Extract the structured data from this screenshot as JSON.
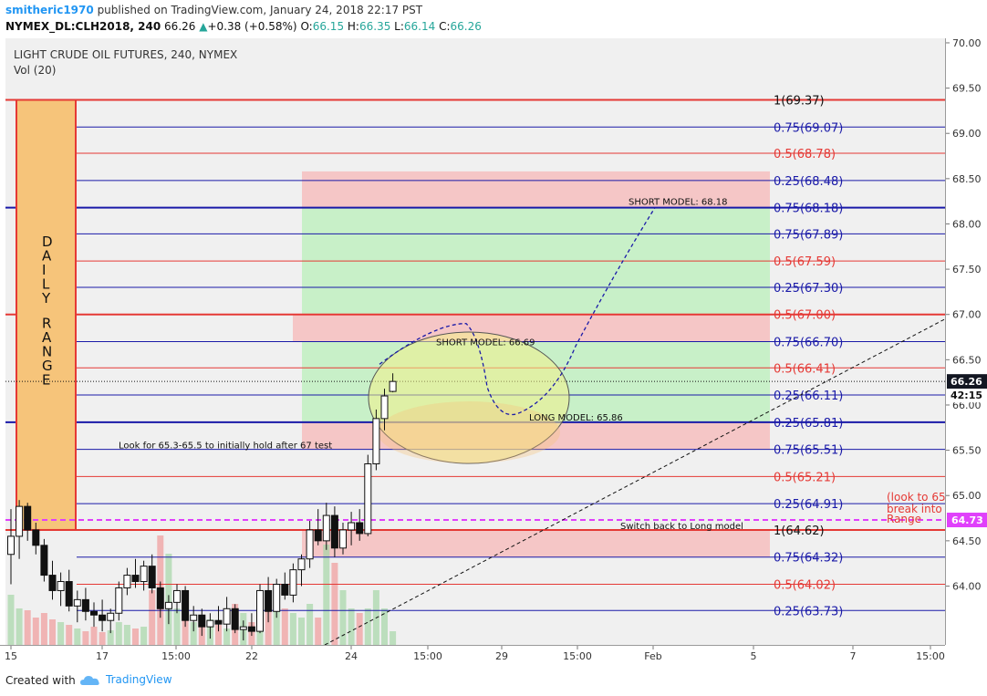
{
  "header": {
    "user": "smitheric1970",
    "published_text": "published on TradingView.com, January 24, 2018 22:17 PST",
    "symbol": "NYMEX_DL:CLH2018, 240",
    "last": "66.26",
    "change": "+0.38 (+0.58%)",
    "o_label": "O:",
    "o": "66.15",
    "h_label": "H:",
    "h": "66.35",
    "l_label": "L:",
    "l": "66.14",
    "c_label": "C:",
    "c": "66.26"
  },
  "legend": {
    "title": "LIGHT CRUDE OIL FUTURES, 240, NYMEX",
    "vol": "Vol (20)"
  },
  "footer": {
    "created_with": "Created with",
    "brand": "TradingView"
  },
  "colors": {
    "red": "#e53935",
    "blue": "#1a1aa8",
    "orange_box": "#f6c47a",
    "green_zone": "#c8f0c8",
    "red_zone": "#f5c6c6",
    "ellipse": "#f3f08a",
    "magenta": "#e040fb",
    "last_price_bg": "#131722"
  },
  "chart_data": {
    "type": "candlestick",
    "symbol": "NYMEX_DL:CLH2018",
    "timeframe": "240",
    "y_range": [
      63.35,
      70.05
    ],
    "price_ticks": [
      "70.00",
      "69.50",
      "69.00",
      "68.50",
      "68.00",
      "67.50",
      "67.00",
      "66.50",
      "66.00",
      "65.50",
      "65.00",
      "64.50",
      "64.00"
    ],
    "time_ticks": [
      "15",
      "17",
      "15:00",
      "22",
      "24",
      "15:00",
      "29",
      "15:00",
      "Feb",
      "5",
      "7",
      "15:00"
    ],
    "last_price": "66.26",
    "countdown": "42:15",
    "marker_price": "64.73",
    "candles": [
      {
        "o": 64.35,
        "h": 64.85,
        "l": 64.02,
        "c": 64.55
      },
      {
        "o": 64.55,
        "h": 64.95,
        "l": 64.3,
        "c": 64.88
      },
      {
        "o": 64.88,
        "h": 64.92,
        "l": 64.5,
        "c": 64.62
      },
      {
        "o": 64.62,
        "h": 64.7,
        "l": 64.35,
        "c": 64.45
      },
      {
        "o": 64.45,
        "h": 64.52,
        "l": 64.05,
        "c": 64.12
      },
      {
        "o": 64.12,
        "h": 64.28,
        "l": 63.85,
        "c": 63.95
      },
      {
        "o": 63.95,
        "h": 64.15,
        "l": 63.78,
        "c": 64.05
      },
      {
        "o": 64.05,
        "h": 64.18,
        "l": 63.72,
        "c": 63.78
      },
      {
        "o": 63.78,
        "h": 63.95,
        "l": 63.6,
        "c": 63.85
      },
      {
        "o": 63.85,
        "h": 63.98,
        "l": 63.62,
        "c": 63.72
      },
      {
        "o": 63.72,
        "h": 63.82,
        "l": 63.55,
        "c": 63.68
      },
      {
        "o": 63.68,
        "h": 63.85,
        "l": 63.5,
        "c": 63.62
      },
      {
        "o": 63.62,
        "h": 63.75,
        "l": 63.48,
        "c": 63.7
      },
      {
        "o": 63.7,
        "h": 64.05,
        "l": 63.62,
        "c": 63.98
      },
      {
        "o": 63.98,
        "h": 64.2,
        "l": 63.9,
        "c": 64.12
      },
      {
        "o": 64.12,
        "h": 64.3,
        "l": 63.98,
        "c": 64.05
      },
      {
        "o": 64.05,
        "h": 64.28,
        "l": 63.95,
        "c": 64.22
      },
      {
        "o": 64.22,
        "h": 64.35,
        "l": 63.92,
        "c": 63.98
      },
      {
        "o": 63.98,
        "h": 64.05,
        "l": 63.65,
        "c": 63.75
      },
      {
        "o": 63.75,
        "h": 63.9,
        "l": 63.58,
        "c": 63.82
      },
      {
        "o": 63.82,
        "h": 64.02,
        "l": 63.7,
        "c": 63.95
      },
      {
        "o": 63.95,
        "h": 64.0,
        "l": 63.55,
        "c": 63.62
      },
      {
        "o": 63.62,
        "h": 63.78,
        "l": 63.5,
        "c": 63.68
      },
      {
        "o": 63.68,
        "h": 63.75,
        "l": 63.45,
        "c": 63.55
      },
      {
        "o": 63.55,
        "h": 63.7,
        "l": 63.42,
        "c": 63.62
      },
      {
        "o": 63.62,
        "h": 63.78,
        "l": 63.5,
        "c": 63.58
      },
      {
        "o": 63.58,
        "h": 63.88,
        "l": 63.5,
        "c": 63.75
      },
      {
        "o": 63.75,
        "h": 63.8,
        "l": 63.48,
        "c": 63.52
      },
      {
        "o": 63.52,
        "h": 63.62,
        "l": 63.4,
        "c": 63.55
      },
      {
        "o": 63.55,
        "h": 63.7,
        "l": 63.45,
        "c": 63.5
      },
      {
        "o": 63.5,
        "h": 64.02,
        "l": 63.48,
        "c": 63.95
      },
      {
        "o": 63.95,
        "h": 64.1,
        "l": 63.6,
        "c": 63.72
      },
      {
        "o": 63.72,
        "h": 64.08,
        "l": 63.65,
        "c": 64.02
      },
      {
        "o": 64.02,
        "h": 64.15,
        "l": 63.85,
        "c": 63.9
      },
      {
        "o": 63.9,
        "h": 64.25,
        "l": 63.82,
        "c": 64.18
      },
      {
        "o": 64.18,
        "h": 64.35,
        "l": 64.0,
        "c": 64.3
      },
      {
        "o": 64.3,
        "h": 64.72,
        "l": 64.2,
        "c": 64.62
      },
      {
        "o": 64.62,
        "h": 64.85,
        "l": 64.45,
        "c": 64.5
      },
      {
        "o": 64.5,
        "h": 64.92,
        "l": 64.4,
        "c": 64.78
      },
      {
        "o": 64.78,
        "h": 64.88,
        "l": 64.32,
        "c": 64.42
      },
      {
        "o": 64.42,
        "h": 64.7,
        "l": 64.35,
        "c": 64.62
      },
      {
        "o": 64.62,
        "h": 64.82,
        "l": 64.45,
        "c": 64.7
      },
      {
        "o": 64.7,
        "h": 64.85,
        "l": 64.5,
        "c": 64.58
      },
      {
        "o": 64.58,
        "h": 65.45,
        "l": 64.55,
        "c": 65.35
      },
      {
        "o": 65.35,
        "h": 65.95,
        "l": 65.28,
        "c": 65.85
      },
      {
        "o": 65.85,
        "h": 66.18,
        "l": 65.72,
        "c": 66.1
      },
      {
        "o": 66.15,
        "h": 66.35,
        "l": 66.14,
        "c": 66.26
      }
    ],
    "volume": [
      55,
      40,
      38,
      30,
      35,
      28,
      25,
      22,
      18,
      15,
      20,
      14,
      16,
      25,
      22,
      18,
      20,
      60,
      120,
      100,
      40,
      30,
      25,
      20,
      28,
      22,
      18,
      45,
      35,
      25,
      60,
      50,
      55,
      40,
      35,
      30,
      45,
      30,
      110,
      90,
      60,
      40,
      35,
      40,
      60,
      40,
      15
    ],
    "fib_levels": [
      {
        "label": "1(69.37)",
        "price": 69.37,
        "color": "#e53935",
        "width": 2
      },
      {
        "label": "0.75(69.07)",
        "price": 69.07,
        "color": "#1a1aa8",
        "width": 1
      },
      {
        "label": "0.5(68.78)",
        "price": 68.78,
        "color": "#e53935",
        "width": 1
      },
      {
        "label": "0.25(68.48)",
        "price": 68.48,
        "color": "#1a1aa8",
        "width": 1
      },
      {
        "label": "0.75(68.18)",
        "price": 68.18,
        "color": "#1a1aa8",
        "width": 2
      },
      {
        "label": "0.75(67.89)",
        "price": 67.89,
        "color": "#1a1aa8",
        "width": 1
      },
      {
        "label": "0.5(67.59)",
        "price": 67.59,
        "color": "#e53935",
        "width": 1
      },
      {
        "label": "0.25(67.30)",
        "price": 67.3,
        "color": "#1a1aa8",
        "width": 1
      },
      {
        "label": "0.5(67.00)",
        "price": 67.0,
        "color": "#e53935",
        "width": 2
      },
      {
        "label": "0.75(66.70)",
        "price": 66.7,
        "color": "#1a1aa8",
        "width": 1
      },
      {
        "label": "0.5(66.41)",
        "price": 66.41,
        "color": "#e53935",
        "width": 1
      },
      {
        "label": "0.25(66.11)",
        "price": 66.11,
        "color": "#1a1aa8",
        "width": 1
      },
      {
        "label": "0.25(65.81)",
        "price": 65.81,
        "color": "#1a1aa8",
        "width": 2
      },
      {
        "label": "0.75(65.51)",
        "price": 65.51,
        "color": "#1a1aa8",
        "width": 1
      },
      {
        "label": "0.5(65.21)",
        "price": 65.21,
        "color": "#e53935",
        "width": 1
      },
      {
        "label": "0.25(64.91)",
        "price": 64.91,
        "color": "#1a1aa8",
        "width": 1
      },
      {
        "label": "1(64.62)",
        "price": 64.62,
        "color": "#e53935",
        "width": 2
      },
      {
        "label": "0.75(64.32)",
        "price": 64.32,
        "color": "#1a1aa8",
        "width": 1
      },
      {
        "label": "0.5(64.02)",
        "price": 64.02,
        "color": "#e53935",
        "width": 1
      },
      {
        "label": "0.25(63.73)",
        "price": 63.73,
        "color": "#1a1aa8",
        "width": 1
      }
    ],
    "annotations": {
      "daily_range": "DAILY RANGE",
      "short_model_1": "SHORT MODEL: 68.18",
      "short_model_2": "SHORT MODEL: 66.69",
      "long_model": "LONG MODEL: 65.86",
      "look_for": "Look for 65.3-65.5 to initially hold after 67 test",
      "switch_back": "Switch back to Long model",
      "look_to_line1": "(look to 65",
      "look_to_line2": "break into",
      "look_to_line3": "Range"
    }
  }
}
